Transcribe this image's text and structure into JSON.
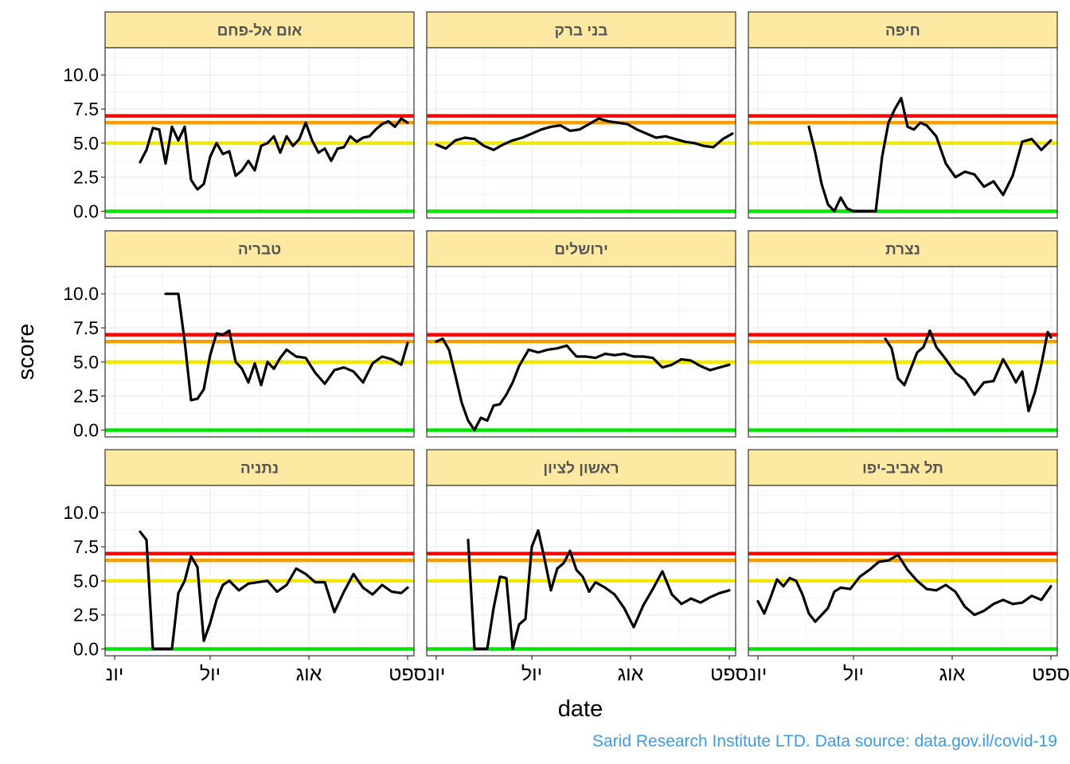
{
  "caption": "Sarid Research Institute LTD. Data source: data.gov.il/covid-19",
  "chart_data": {
    "type": "line",
    "xlabel": "date",
    "ylabel": "score",
    "ylim": [
      0,
      12
    ],
    "yticks": [
      0,
      2.5,
      5,
      7.5,
      10
    ],
    "ytick_labels": [
      "0.0",
      "2.5",
      "5.0",
      "7.5",
      "10.0"
    ],
    "xlim": [
      "2020-05-29",
      "2020-09-03"
    ],
    "xticks": [
      "2020-06-01",
      "2020-07-01",
      "2020-08-01",
      "2020-09-01"
    ],
    "xtick_labels": [
      "יונ",
      "יול",
      "אוג",
      "ספט"
    ],
    "grid": true,
    "thresholds": [
      {
        "value": 0,
        "color": "#00e600"
      },
      {
        "value": 5,
        "color": "#f0e800"
      },
      {
        "value": 6.5,
        "color": "#f5a000"
      },
      {
        "value": 7,
        "color": "#ff0000"
      }
    ],
    "colors": {
      "line": "#000000",
      "strip": "#fde9a2",
      "grid": "#ebebeb",
      "caption": "#3c9be6"
    },
    "panels": [
      {
        "name": "אום אל-פחם",
        "x": [
          "2020-06-09",
          "2020-06-11",
          "2020-06-13",
          "2020-06-15",
          "2020-06-17",
          "2020-06-19",
          "2020-06-21",
          "2020-06-23",
          "2020-06-25",
          "2020-06-27",
          "2020-06-29",
          "2020-07-01",
          "2020-07-03",
          "2020-07-05",
          "2020-07-07",
          "2020-07-09",
          "2020-07-11",
          "2020-07-13",
          "2020-07-15",
          "2020-07-17",
          "2020-07-19",
          "2020-07-21",
          "2020-07-23",
          "2020-07-25",
          "2020-07-27",
          "2020-07-29",
          "2020-07-31",
          "2020-08-02",
          "2020-08-04",
          "2020-08-06",
          "2020-08-08",
          "2020-08-10",
          "2020-08-12",
          "2020-08-14",
          "2020-08-16",
          "2020-08-18",
          "2020-08-20",
          "2020-08-22",
          "2020-08-24",
          "2020-08-26",
          "2020-08-28",
          "2020-08-30",
          "2020-09-01"
        ],
        "y": [
          3.6,
          4.5,
          6.1,
          6.0,
          3.5,
          6.2,
          5.2,
          6.2,
          2.3,
          1.6,
          2.0,
          4.0,
          5.0,
          4.2,
          4.4,
          2.6,
          3.0,
          3.7,
          3.0,
          4.8,
          5.0,
          5.5,
          4.3,
          5.5,
          4.8,
          5.3,
          6.5,
          5.2,
          4.3,
          4.6,
          3.7,
          4.6,
          4.7,
          5.5,
          5.1,
          5.4,
          5.5,
          6.0,
          6.4,
          6.6,
          6.2,
          6.8,
          6.5
        ]
      },
      {
        "name": "בני ברק",
        "x": [
          "2020-06-01",
          "2020-06-04",
          "2020-06-07",
          "2020-06-10",
          "2020-06-13",
          "2020-06-16",
          "2020-06-19",
          "2020-06-22",
          "2020-06-25",
          "2020-06-28",
          "2020-07-01",
          "2020-07-04",
          "2020-07-07",
          "2020-07-10",
          "2020-07-13",
          "2020-07-16",
          "2020-07-19",
          "2020-07-22",
          "2020-07-25",
          "2020-07-28",
          "2020-07-31",
          "2020-08-03",
          "2020-08-06",
          "2020-08-09",
          "2020-08-12",
          "2020-08-15",
          "2020-08-18",
          "2020-08-21",
          "2020-08-24",
          "2020-08-27",
          "2020-08-30",
          "2020-09-02"
        ],
        "y": [
          4.9,
          4.6,
          5.2,
          5.4,
          5.3,
          4.8,
          4.5,
          4.9,
          5.2,
          5.4,
          5.7,
          6.0,
          6.2,
          6.3,
          5.9,
          6.0,
          6.4,
          6.8,
          6.6,
          6.5,
          6.4,
          6.0,
          5.7,
          5.4,
          5.5,
          5.3,
          5.1,
          5.0,
          4.8,
          4.7,
          5.3,
          5.7
        ]
      },
      {
        "name": "חיפה",
        "x": [
          "2020-06-17",
          "2020-06-19",
          "2020-06-21",
          "2020-06-23",
          "2020-06-25",
          "2020-06-27",
          "2020-06-29",
          "2020-07-01",
          "2020-07-03",
          "2020-07-05",
          "2020-07-08",
          "2020-07-10",
          "2020-07-12",
          "2020-07-14",
          "2020-07-16",
          "2020-07-18",
          "2020-07-20",
          "2020-07-22",
          "2020-07-24",
          "2020-07-27",
          "2020-07-30",
          "2020-08-02",
          "2020-08-05",
          "2020-08-08",
          "2020-08-11",
          "2020-08-14",
          "2020-08-17",
          "2020-08-20",
          "2020-08-23",
          "2020-08-26",
          "2020-08-29",
          "2020-09-01"
        ],
        "y": [
          6.2,
          4.3,
          2.0,
          0.5,
          0.0,
          1.0,
          0.2,
          0.0,
          0.0,
          0.0,
          0.0,
          4.0,
          6.5,
          7.5,
          8.3,
          6.2,
          6.0,
          6.5,
          6.3,
          5.5,
          3.5,
          2.5,
          2.9,
          2.7,
          1.8,
          2.2,
          1.2,
          2.6,
          5.1,
          5.3,
          4.5,
          5.2
        ]
      },
      {
        "name": "טבריה",
        "x": [
          "2020-06-17",
          "2020-06-19",
          "2020-06-21",
          "2020-06-23",
          "2020-06-25",
          "2020-06-27",
          "2020-06-29",
          "2020-07-01",
          "2020-07-03",
          "2020-07-05",
          "2020-07-07",
          "2020-07-09",
          "2020-07-11",
          "2020-07-13",
          "2020-07-15",
          "2020-07-17",
          "2020-07-19",
          "2020-07-21",
          "2020-07-23",
          "2020-07-25",
          "2020-07-28",
          "2020-07-31",
          "2020-08-03",
          "2020-08-06",
          "2020-08-09",
          "2020-08-12",
          "2020-08-15",
          "2020-08-18",
          "2020-08-21",
          "2020-08-24",
          "2020-08-27",
          "2020-08-30",
          "2020-09-01"
        ],
        "y": [
          10.0,
          10.0,
          10.0,
          6.5,
          2.2,
          2.3,
          3.0,
          5.5,
          7.1,
          7.0,
          7.3,
          5.0,
          4.5,
          3.5,
          4.9,
          3.3,
          5.0,
          4.5,
          5.3,
          5.9,
          5.4,
          5.3,
          4.2,
          3.4,
          4.4,
          4.6,
          4.3,
          3.5,
          4.9,
          5.4,
          5.2,
          4.8,
          6.4
        ]
      },
      {
        "name": "ירושלים",
        "x": [
          "2020-06-01",
          "2020-06-03",
          "2020-06-05",
          "2020-06-07",
          "2020-06-09",
          "2020-06-11",
          "2020-06-13",
          "2020-06-15",
          "2020-06-17",
          "2020-06-19",
          "2020-06-21",
          "2020-06-23",
          "2020-06-25",
          "2020-06-27",
          "2020-06-30",
          "2020-07-03",
          "2020-07-06",
          "2020-07-09",
          "2020-07-12",
          "2020-07-15",
          "2020-07-18",
          "2020-07-21",
          "2020-07-24",
          "2020-07-27",
          "2020-07-30",
          "2020-08-02",
          "2020-08-05",
          "2020-08-08",
          "2020-08-11",
          "2020-08-14",
          "2020-08-17",
          "2020-08-20",
          "2020-08-23",
          "2020-08-26",
          "2020-08-29",
          "2020-09-01"
        ],
        "y": [
          6.5,
          6.7,
          5.9,
          4.0,
          2.0,
          0.7,
          0.0,
          0.9,
          0.7,
          1.8,
          1.9,
          2.6,
          3.5,
          4.7,
          5.9,
          5.7,
          5.9,
          6.0,
          6.2,
          5.4,
          5.4,
          5.3,
          5.6,
          5.5,
          5.6,
          5.4,
          5.4,
          5.3,
          4.6,
          4.8,
          5.2,
          5.1,
          4.7,
          4.4,
          4.6,
          4.8
        ]
      },
      {
        "name": "נצרת",
        "x": [
          "2020-07-11",
          "2020-07-13",
          "2020-07-15",
          "2020-07-17",
          "2020-07-19",
          "2020-07-21",
          "2020-07-23",
          "2020-07-25",
          "2020-07-27",
          "2020-07-30",
          "2020-08-02",
          "2020-08-05",
          "2020-08-08",
          "2020-08-11",
          "2020-08-14",
          "2020-08-17",
          "2020-08-19",
          "2020-08-21",
          "2020-08-23",
          "2020-08-25",
          "2020-08-27",
          "2020-08-29",
          "2020-08-31",
          "2020-09-01"
        ],
        "y": [
          6.7,
          6.0,
          3.8,
          3.3,
          4.5,
          5.7,
          6.1,
          7.3,
          6.1,
          5.2,
          4.2,
          3.7,
          2.6,
          3.5,
          3.6,
          5.2,
          4.4,
          3.5,
          4.3,
          1.4,
          2.8,
          4.8,
          7.2,
          6.8
        ]
      },
      {
        "name": "נתניה",
        "x": [
          "2020-06-09",
          "2020-06-11",
          "2020-06-13",
          "2020-06-15",
          "2020-06-17",
          "2020-06-19",
          "2020-06-21",
          "2020-06-23",
          "2020-06-25",
          "2020-06-27",
          "2020-06-29",
          "2020-07-01",
          "2020-07-03",
          "2020-07-05",
          "2020-07-07",
          "2020-07-10",
          "2020-07-13",
          "2020-07-16",
          "2020-07-19",
          "2020-07-22",
          "2020-07-25",
          "2020-07-28",
          "2020-07-31",
          "2020-08-03",
          "2020-08-06",
          "2020-08-09",
          "2020-08-12",
          "2020-08-15",
          "2020-08-18",
          "2020-08-21",
          "2020-08-24",
          "2020-08-27",
          "2020-08-30",
          "2020-09-01"
        ],
        "y": [
          8.6,
          8.0,
          0.0,
          0.0,
          0.0,
          0.0,
          4.1,
          5.0,
          6.8,
          6.0,
          0.6,
          1.9,
          3.6,
          4.7,
          5.0,
          4.3,
          4.8,
          4.9,
          5.0,
          4.2,
          4.7,
          5.9,
          5.5,
          4.9,
          4.9,
          2.7,
          4.2,
          5.5,
          4.5,
          4.0,
          4.7,
          4.2,
          4.1,
          4.5
        ]
      },
      {
        "name": "ראשון לציון",
        "x": [
          "2020-06-11",
          "2020-06-13",
          "2020-06-15",
          "2020-06-17",
          "2020-06-19",
          "2020-06-21",
          "2020-06-23",
          "2020-06-25",
          "2020-06-27",
          "2020-06-29",
          "2020-07-01",
          "2020-07-03",
          "2020-07-05",
          "2020-07-07",
          "2020-07-09",
          "2020-07-11",
          "2020-07-13",
          "2020-07-15",
          "2020-07-17",
          "2020-07-19",
          "2020-07-21",
          "2020-07-24",
          "2020-07-27",
          "2020-07-30",
          "2020-08-02",
          "2020-08-05",
          "2020-08-08",
          "2020-08-11",
          "2020-08-14",
          "2020-08-17",
          "2020-08-20",
          "2020-08-23",
          "2020-08-26",
          "2020-08-29",
          "2020-09-01"
        ],
        "y": [
          8.0,
          0.0,
          0.0,
          0.0,
          3.0,
          5.3,
          5.2,
          0.0,
          1.8,
          2.2,
          7.5,
          8.7,
          6.6,
          4.3,
          5.9,
          6.3,
          7.2,
          5.8,
          5.3,
          4.2,
          4.9,
          4.5,
          4.0,
          3.0,
          1.6,
          3.2,
          4.4,
          5.7,
          4.0,
          3.3,
          3.7,
          3.4,
          3.8,
          4.1,
          4.3
        ]
      },
      {
        "name": "תל אביב-יפו",
        "x": [
          "2020-06-01",
          "2020-06-03",
          "2020-06-05",
          "2020-06-07",
          "2020-06-09",
          "2020-06-11",
          "2020-06-13",
          "2020-06-15",
          "2020-06-17",
          "2020-06-19",
          "2020-06-21",
          "2020-06-23",
          "2020-06-25",
          "2020-06-27",
          "2020-06-30",
          "2020-07-03",
          "2020-07-06",
          "2020-07-09",
          "2020-07-12",
          "2020-07-15",
          "2020-07-18",
          "2020-07-21",
          "2020-07-24",
          "2020-07-27",
          "2020-07-30",
          "2020-08-02",
          "2020-08-05",
          "2020-08-08",
          "2020-08-11",
          "2020-08-14",
          "2020-08-17",
          "2020-08-20",
          "2020-08-23",
          "2020-08-26",
          "2020-08-29",
          "2020-09-01"
        ],
        "y": [
          3.5,
          2.6,
          3.8,
          5.1,
          4.6,
          5.2,
          5.0,
          4.0,
          2.6,
          2.0,
          2.5,
          3.0,
          4.2,
          4.5,
          4.4,
          5.3,
          5.8,
          6.4,
          6.5,
          6.9,
          5.8,
          5.0,
          4.4,
          4.3,
          4.7,
          4.2,
          3.1,
          2.5,
          2.8,
          3.3,
          3.6,
          3.3,
          3.4,
          3.9,
          3.6,
          4.6
        ]
      }
    ]
  }
}
